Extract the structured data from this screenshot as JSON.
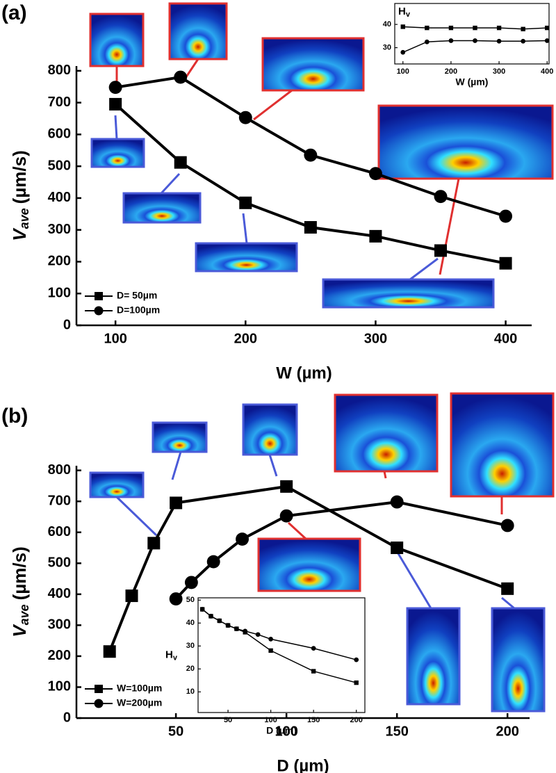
{
  "chart_data": [
    {
      "type": "line",
      "panel": "(a)",
      "x_label": "W (µm)",
      "y_label": "V",
      "y_label_sub": "ave",
      "y_label_unit": "(µm/s)",
      "x": [
        100,
        150,
        200,
        250,
        300,
        350,
        400
      ],
      "xlim": [
        70,
        420
      ],
      "xticks": [
        100,
        200,
        300,
        400
      ],
      "ylim": [
        0,
        815
      ],
      "yticks": [
        0,
        100,
        200,
        300,
        400,
        500,
        600,
        700,
        800
      ],
      "legend": "lower left",
      "series": [
        {
          "name": "D= 50µm",
          "color": "#000000",
          "marker": "square",
          "values": [
            695,
            512,
            385,
            308,
            280,
            235,
            195
          ]
        },
        {
          "name": "D=100µm",
          "color": "#000000",
          "marker": "circle",
          "values": [
            748,
            780,
            653,
            535,
            477,
            405,
            343
          ]
        }
      ]
    },
    {
      "type": "line",
      "x_label": "W (µm)",
      "y_label": "H",
      "y_label_sub": "v",
      "x": [
        100,
        150,
        200,
        250,
        300,
        350,
        400
      ],
      "xlim": [
        83,
        404
      ],
      "xticks": [
        100,
        200,
        300,
        400
      ],
      "ylim": [
        23,
        49
      ],
      "yticks": [
        30,
        40
      ],
      "series": [
        {
          "color": "#000000",
          "marker": "square",
          "values": [
            39,
            38.5,
            38.5,
            38.5,
            38.5,
            38,
            38.5
          ]
        },
        {
          "color": "#000000",
          "marker": "circle",
          "values": [
            28,
            32.5,
            33,
            33,
            32.8,
            32.8,
            33
          ]
        }
      ]
    },
    {
      "type": "line",
      "panel": "(b)",
      "x_label": "D (µm)",
      "y_label": "V",
      "y_label_sub": "ave",
      "y_label_unit": "(µm/s)",
      "xlim": [
        5,
        210
      ],
      "xticks": [
        50,
        100,
        150,
        200
      ],
      "ylim": [
        0,
        815
      ],
      "yticks": [
        0,
        100,
        200,
        300,
        400,
        500,
        600,
        700,
        800
      ],
      "legend": "lower left",
      "series": [
        {
          "name": "W=100µm",
          "color": "#000000",
          "marker": "square",
          "x": [
            20,
            30,
            40,
            50,
            100,
            150,
            200
          ],
          "values": [
            215,
            395,
            565,
            695,
            748,
            550,
            418
          ]
        },
        {
          "name": "W=200µm",
          "color": "#000000",
          "marker": "circle",
          "x": [
            50,
            57,
            67,
            80,
            100,
            150,
            200
          ],
          "values": [
            385,
            438,
            505,
            578,
            653,
            698,
            622
          ]
        }
      ]
    },
    {
      "type": "line",
      "x_label": "D (µm)",
      "y_label": "H",
      "y_label_sub": "v",
      "xlim": [
        15,
        210
      ],
      "xticks": [
        50,
        100,
        150,
        200
      ],
      "ylim": [
        1,
        51
      ],
      "yticks": [
        10,
        20,
        30,
        40,
        50
      ],
      "series": [
        {
          "color": "#000000",
          "marker": "square",
          "x": [
            20,
            30,
            40,
            50,
            60,
            70,
            100,
            150,
            200
          ],
          "values": [
            46,
            43,
            41,
            39,
            37.5,
            36,
            28,
            19,
            14
          ]
        },
        {
          "color": "#000000",
          "marker": "circle",
          "x": [
            20,
            30,
            40,
            50,
            60,
            70,
            85,
            100,
            150,
            200
          ],
          "values": [
            46,
            43,
            41,
            39,
            37.5,
            36.5,
            35,
            33,
            29,
            24
          ]
        }
      ]
    }
  ]
}
